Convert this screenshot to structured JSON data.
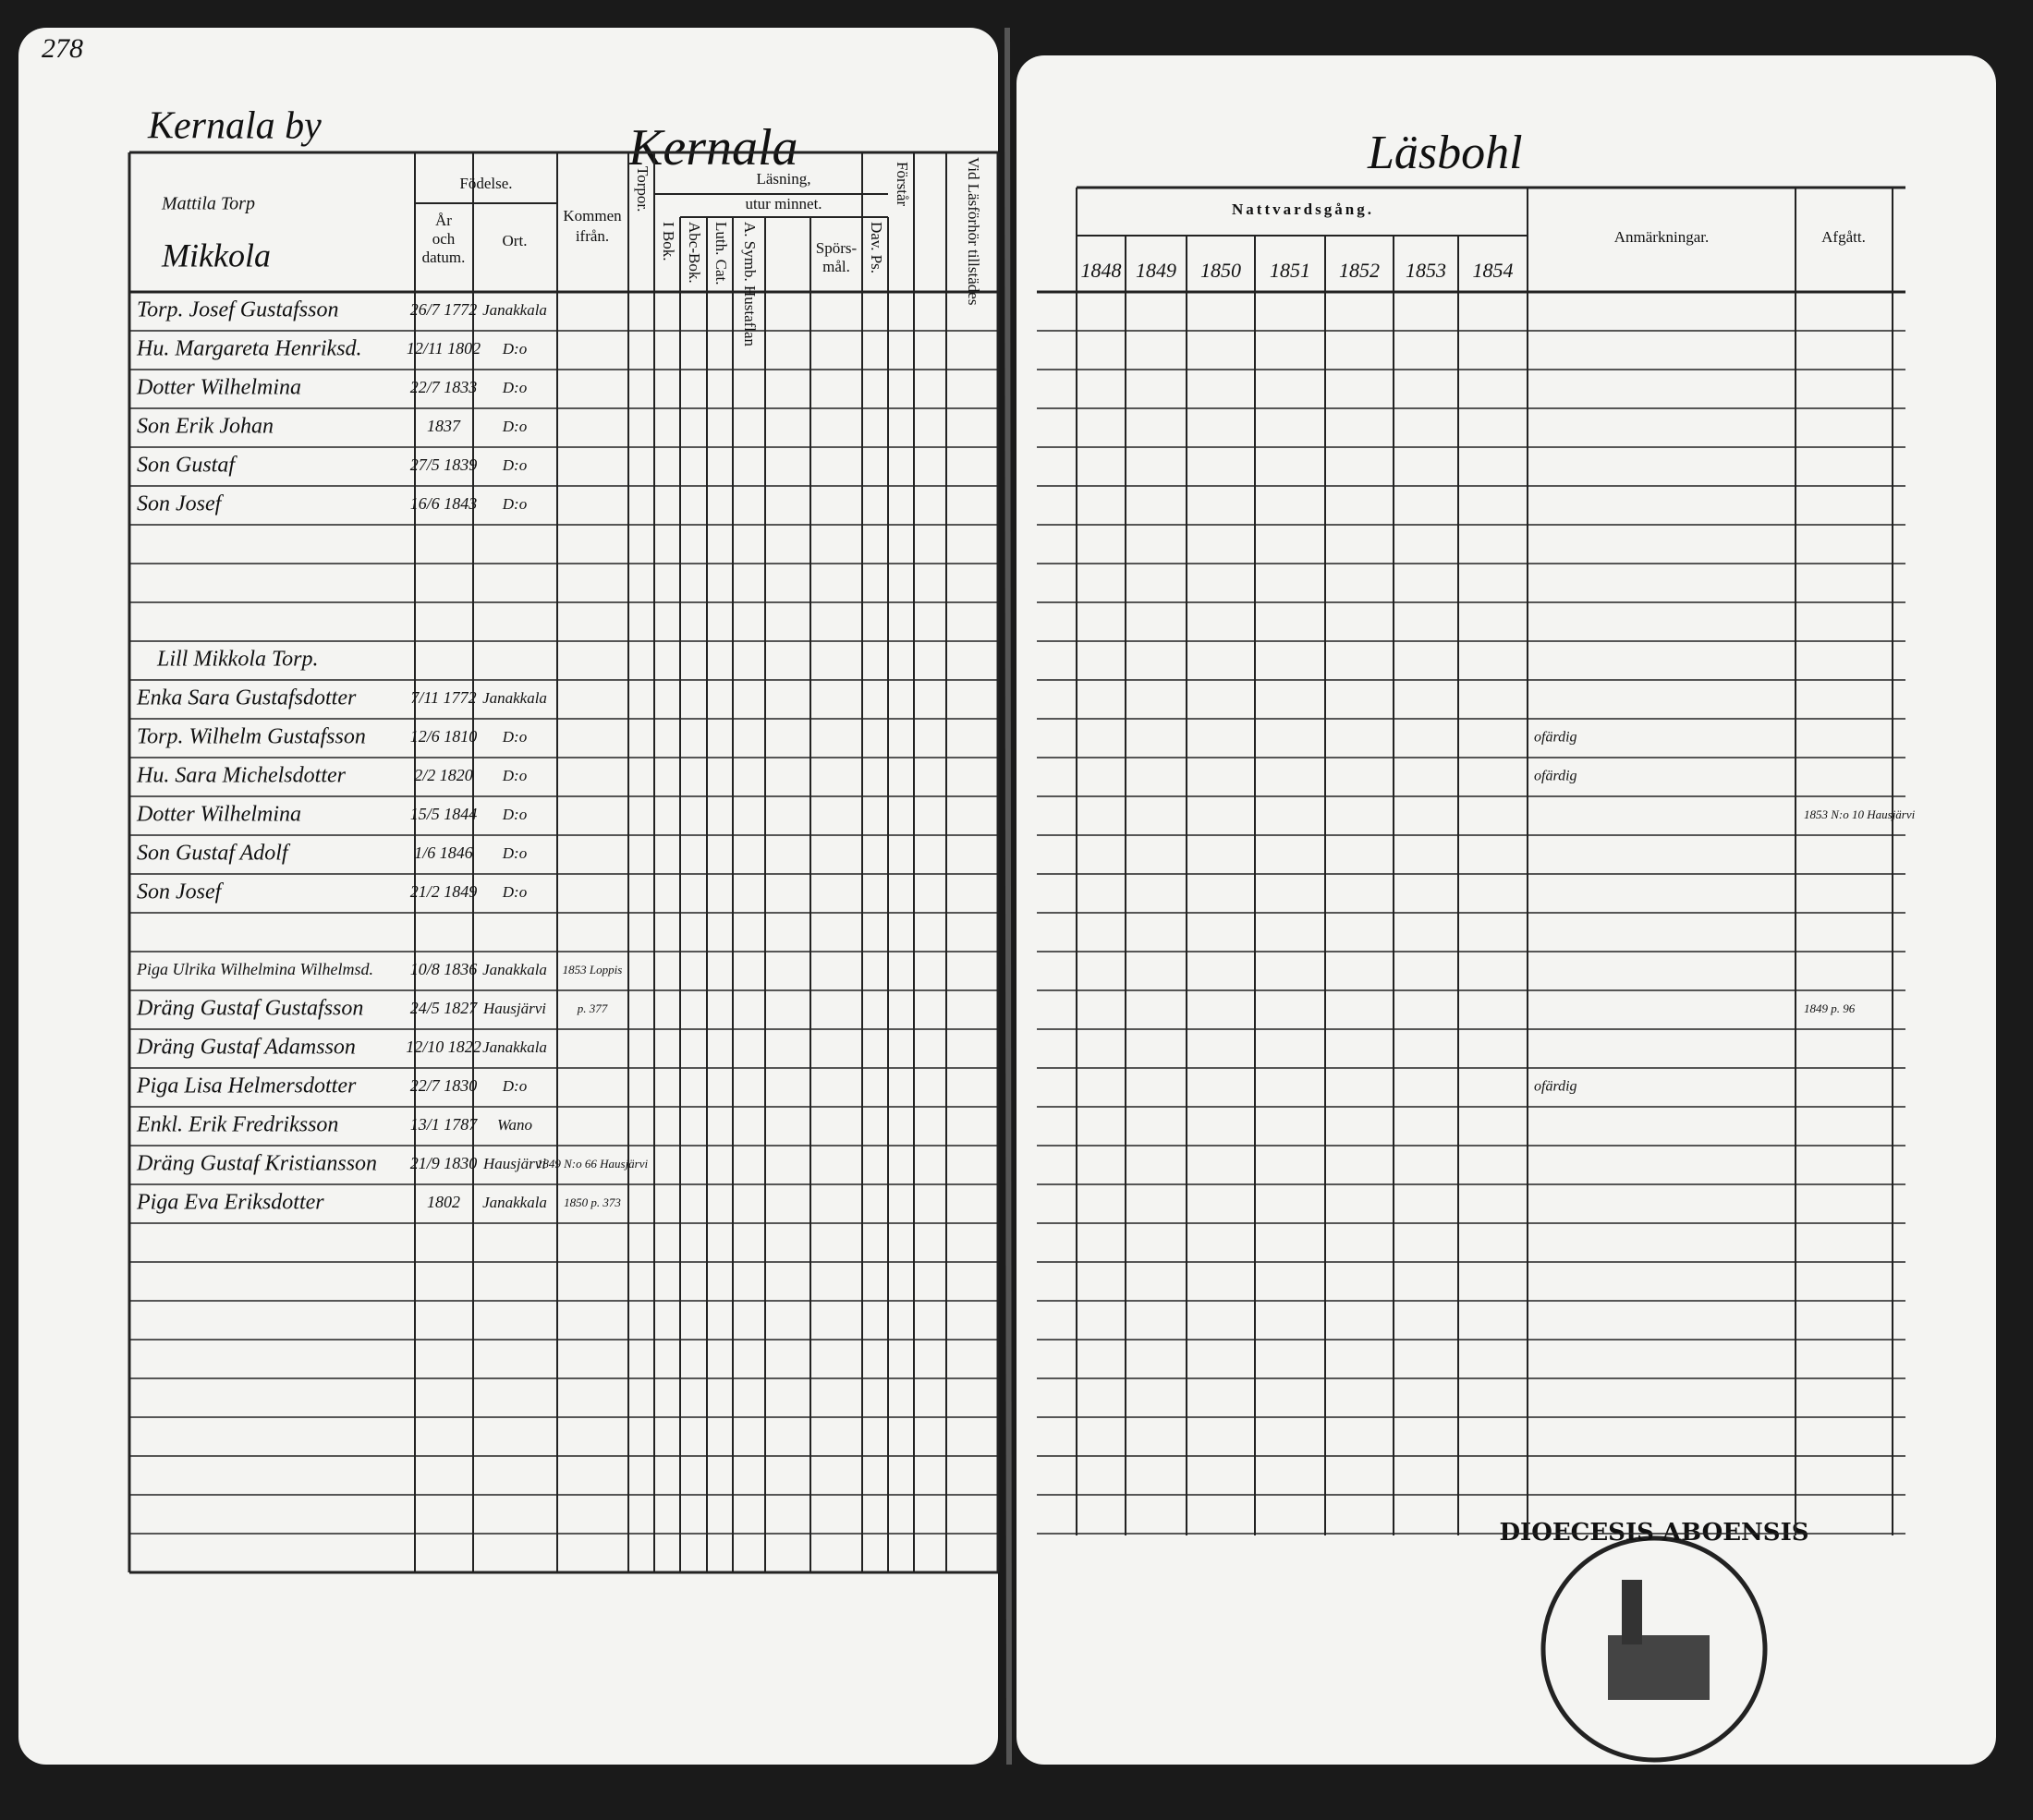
{
  "page_number": "278",
  "left_page": {
    "village": "Kernala by",
    "parish": "Kernala",
    "farm": [
      "Mattila Torp",
      "Mikkola"
    ],
    "headers": {
      "birth": "Födelse.",
      "birth_date": [
        "År",
        "och",
        "datum."
      ],
      "birth_place": "Ort.",
      "came_from": [
        "Kommen",
        "ifrån."
      ],
      "vertical": [
        "Torpor.",
        "I Bok.",
        "Abc-Bok.",
        "Luth. Cat.",
        "A. Symb. Hustaflan",
        "Dav. Ps.",
        "Förstår",
        "Vid Läsförhör tillstädes"
      ],
      "reading": "Läsning,",
      "by_heart": "utur minnet.",
      "questions": [
        "Spörs-",
        "mål."
      ]
    },
    "groups": [
      {
        "rows": [
          {
            "name": "Torp. Josef Gustafsson",
            "date": "26/7 1772",
            "place": "Janakkala"
          },
          {
            "name": "Hu. Margareta Henriksd.",
            "date": "12/11 1802",
            "place": "D:o"
          },
          {
            "name": "Dotter Wilhelmina",
            "date": "22/7 1833",
            "place": "D:o"
          },
          {
            "name": "Son Erik Johan",
            "date": "1837",
            "place": "D:o"
          },
          {
            "name": "Son Gustaf",
            "date": "27/5 1839",
            "place": "D:o"
          },
          {
            "name": "Son Josef",
            "date": "16/6 1843",
            "place": "D:o"
          }
        ]
      },
      {
        "heading": "Lill Mikkola Torp.",
        "rows": [
          {
            "name": "Enka Sara Gustafsdotter",
            "date": "7/11 1772",
            "place": "Janakkala"
          },
          {
            "name": "Torp. Wilhelm Gustafsson",
            "date": "12/6 1810",
            "place": "D:o"
          },
          {
            "name": "Hu. Sara Michelsdotter",
            "date": "2/2 1820",
            "place": "D:o"
          },
          {
            "name": "Dotter Wilhelmina",
            "date": "15/5 1844",
            "place": "D:o"
          },
          {
            "name": "Son Gustaf Adolf",
            "date": "1/6 1846",
            "place": "D:o"
          },
          {
            "name": "Son Josef",
            "date": "21/2 1849",
            "place": "D:o"
          }
        ]
      },
      {
        "rows": [
          {
            "name": "Piga Ulrika Wilhelmina Wilhelmsd.",
            "date": "10/8 1836",
            "place": "Janakkala",
            "from": "1853 Loppis"
          },
          {
            "name": "Dräng Gustaf Gustafsson",
            "date": "24/5 1827",
            "place": "Hausjärvi",
            "from": "p. 377"
          },
          {
            "name": "Dräng Gustaf Adamsson",
            "date": "12/10 1822",
            "place": "Janakkala"
          },
          {
            "name": "Piga Lisa Helmersdotter",
            "date": "22/7 1830",
            "place": "D:o"
          },
          {
            "name": "Enkl. Erik Fredriksson",
            "date": "13/1 1787",
            "place": "Wano"
          },
          {
            "name": "Dräng Gustaf Kristiansson",
            "date": "21/9 1830",
            "place": "Hausjärvi",
            "from": "1849 N:o 66 Hausjärvi"
          },
          {
            "name": "Piga Eva Eriksdotter",
            "date": "1802",
            "place": "Janakkala",
            "from": "1850 p. 373"
          }
        ]
      }
    ]
  },
  "right_page": {
    "title": "Läsbohl",
    "headers": {
      "communion": "Nattvardsgång.",
      "remarks": "Anmärkningar.",
      "departed": "Afgått."
    },
    "years": [
      "1848",
      "1849",
      "1850",
      "1851",
      "1852",
      "1853",
      "1854"
    ],
    "notes": [
      {
        "row": "Dotter Wilhelmina",
        "departed": "1853 N:o 10 Hausjärvi"
      },
      {
        "row": "Torp. Wilhelm Gustafsson",
        "remark": "ofärdig"
      },
      {
        "row": "Hu. Sara Michelsdotter",
        "remark": "ofärdig"
      },
      {
        "row": "Dräng Gustaf Gustafsson",
        "departed": "1849 p. 96"
      },
      {
        "row": "Piga Lisa Helmersdotter",
        "remark": "ofärdig"
      }
    ]
  },
  "stamp": "DIOECESIS ABOENSIS"
}
